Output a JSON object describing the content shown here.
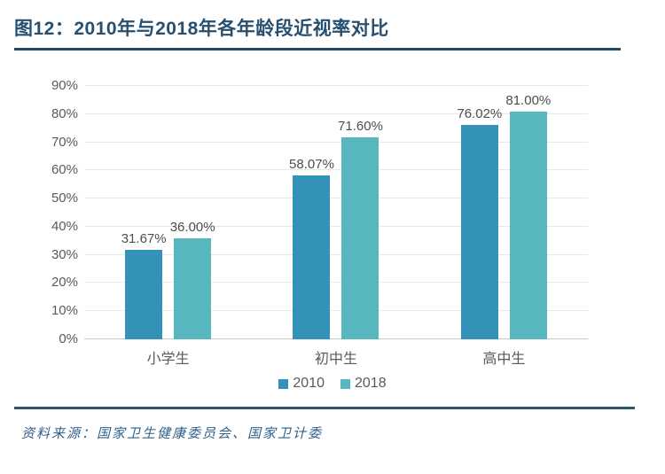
{
  "header": {
    "title": "图12：2010年与2018年各年龄段近视率对比",
    "title_color": "#274F70",
    "rule_color": "#1F4966"
  },
  "footer": {
    "rule_color": "#2E5872",
    "source_text": "资料来源：国家卫生健康委员会、国家卫计委",
    "source_color": "#2F5F8C"
  },
  "chart_data": {
    "type": "bar",
    "title": "图12：2010年与2018年各年龄段近视率对比",
    "categories": [
      "小学生",
      "初中生",
      "高中生"
    ],
    "series": [
      {
        "name": "2010",
        "color": "#3492B8",
        "values": [
          31.67,
          58.07,
          76.02
        ],
        "value_labels": [
          "31.67%",
          "58.07%",
          "76.02%"
        ]
      },
      {
        "name": "2018",
        "color": "#58B6BF",
        "values": [
          36.0,
          71.6,
          81.0
        ],
        "value_labels": [
          "36.00%",
          "71.60%",
          "81.00%"
        ]
      }
    ],
    "ylim": [
      0,
      90
    ],
    "ytick_step": 10,
    "yticks": [
      {
        "value": 0,
        "label": "0%"
      },
      {
        "value": 10,
        "label": "10%"
      },
      {
        "value": 20,
        "label": "20%"
      },
      {
        "value": 30,
        "label": "30%"
      },
      {
        "value": 40,
        "label": "40%"
      },
      {
        "value": 50,
        "label": "50%"
      },
      {
        "value": 60,
        "label": "60%"
      },
      {
        "value": 70,
        "label": "70%"
      },
      {
        "value": 80,
        "label": "80%"
      },
      {
        "value": 90,
        "label": "90%"
      }
    ],
    "grid": true,
    "legend_position": "bottom",
    "colors": {
      "grid": "#E7E7E7",
      "baseline": "#C9C9C9",
      "tick_text": "#595959",
      "category_text": "#595959",
      "value_label_text": "#4D4D4D",
      "legend_text": "#595959"
    }
  }
}
